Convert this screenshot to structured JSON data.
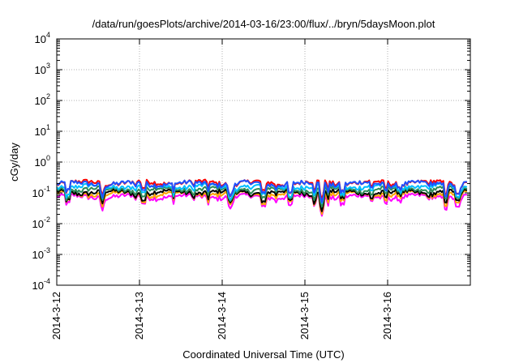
{
  "chart_data": {
    "type": "line",
    "title": "/data/run/goesPlots/archive/2014-03-16/23:00/flux/../bryn/5daysMoon.plot",
    "xlabel": "Coordinated Universal Time (UTC)",
    "ylabel": "cGy/day",
    "y_scale": "log",
    "ylim": [
      0.0001,
      10000
    ],
    "y_ticks": [
      {
        "base": "10",
        "exp": "-4",
        "value": 0.0001
      },
      {
        "base": "10",
        "exp": "-3",
        "value": 0.001
      },
      {
        "base": "10",
        "exp": "-2",
        "value": 0.01
      },
      {
        "base": "10",
        "exp": "-1",
        "value": 0.1
      },
      {
        "base": "10",
        "exp": "0",
        "value": 1
      },
      {
        "base": "10",
        "exp": "1",
        "value": 10
      },
      {
        "base": "10",
        "exp": "2",
        "value": 100
      },
      {
        "base": "10",
        "exp": "3",
        "value": 1000
      },
      {
        "base": "10",
        "exp": "4",
        "value": 10000
      }
    ],
    "xlim": [
      "2014-03-12",
      "2014-03-16 23:00"
    ],
    "x_ticks": [
      {
        "label": "2014-3-12",
        "day": 0
      },
      {
        "label": "2014-3-13",
        "day": 1
      },
      {
        "label": "2014-3-14",
        "day": 2
      },
      {
        "label": "2014-3-15",
        "day": 3
      },
      {
        "label": "2014-3-16",
        "day": 4
      }
    ],
    "grid": true,
    "series": [
      {
        "color": "#ff00ff",
        "base": 0.075
      },
      {
        "color": "#ffa500",
        "base": 0.092
      },
      {
        "color": "#000000",
        "base": 0.105
      },
      {
        "color": "#2e8b57",
        "base": 0.13
      },
      {
        "color": "#00bfff",
        "base": 0.16
      },
      {
        "color": "#ff0000",
        "base": 0.215
      },
      {
        "color": "#1e50ff",
        "base": 0.2
      }
    ],
    "dips": [
      {
        "day": 0.13,
        "factor": 0.55
      },
      {
        "day": 0.55,
        "factor": 0.6
      },
      {
        "day": 1.05,
        "factor": 0.62
      },
      {
        "day": 2.1,
        "factor": 0.45
      },
      {
        "day": 2.5,
        "factor": 0.48
      },
      {
        "day": 2.82,
        "factor": 0.5
      },
      {
        "day": 3.12,
        "factor": 0.55
      },
      {
        "day": 3.2,
        "factor": 0.42
      },
      {
        "day": 3.45,
        "factor": 0.6
      },
      {
        "day": 4.7,
        "factor": 0.5
      },
      {
        "day": 4.85,
        "factor": 0.45
      }
    ]
  }
}
